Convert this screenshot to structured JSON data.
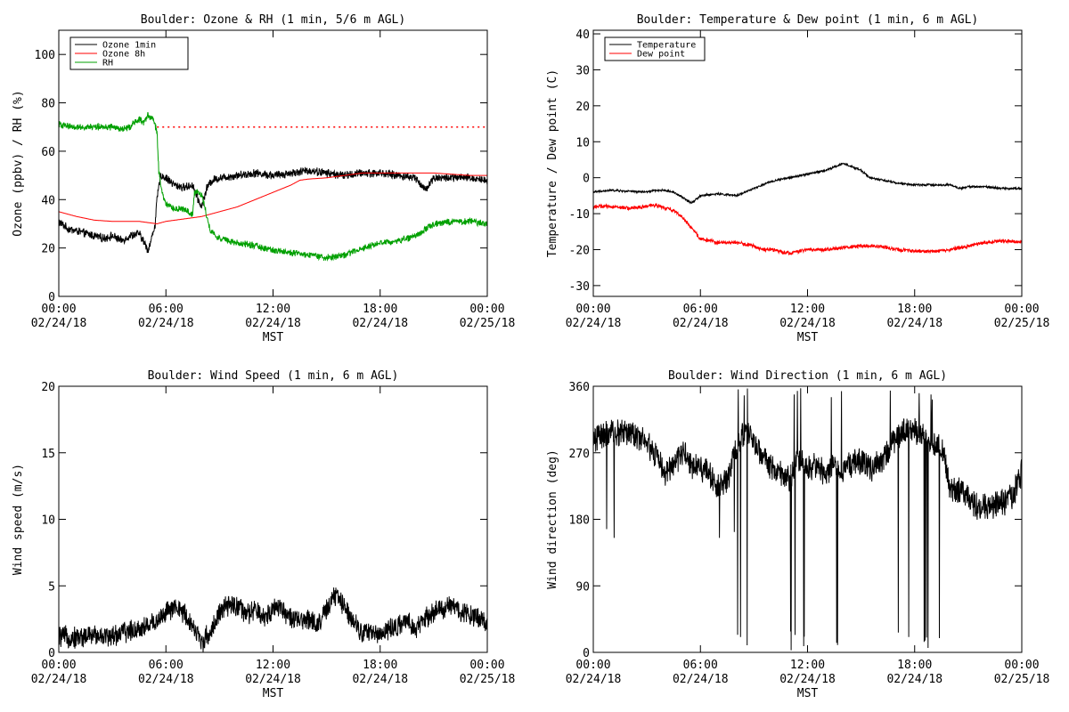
{
  "chart_data": [
    {
      "id": "ozone-rh",
      "type": "line",
      "title": "Boulder: Ozone & RH (1 min, 5/6 m AGL)",
      "xlabel": "MST",
      "ylabel": "Ozone (ppbv) / RH (%)",
      "xlim": [
        0,
        24
      ],
      "ylim": [
        0,
        110
      ],
      "x_ticks": [
        {
          "v": 0,
          "line1": "00:00",
          "line2": "02/24/18"
        },
        {
          "v": 6,
          "line1": "06:00",
          "line2": "02/24/18"
        },
        {
          "v": 12,
          "line1": "12:00",
          "line2": "02/24/18"
        },
        {
          "v": 18,
          "line1": "18:00",
          "line2": "02/24/18"
        },
        {
          "v": 24,
          "line1": "00:00",
          "line2": "02/25/18"
        }
      ],
      "y_ticks": [
        0,
        20,
        40,
        60,
        80,
        100
      ],
      "legend": "top-left",
      "reference_lines": [
        {
          "y": 70,
          "color": "#ff0000",
          "style": "dotted",
          "x_from": 5.5,
          "x_to": 24
        }
      ],
      "series": [
        {
          "name": "Ozone 1min",
          "color": "#000000",
          "noise": 1.5,
          "x": [
            0,
            0.5,
            1,
            1.5,
            2,
            2.5,
            3,
            3.5,
            4,
            4.5,
            4.8,
            5.0,
            5.2,
            5.4,
            5.5,
            5.7,
            6,
            6.5,
            7,
            7.5,
            7.8,
            8.0,
            8.3,
            8.6,
            9,
            10,
            11,
            12,
            13,
            14,
            15,
            16,
            17,
            18,
            19,
            20,
            20.5,
            21,
            22,
            23,
            24
          ],
          "y": [
            31,
            28,
            27,
            26,
            25,
            24,
            25,
            23,
            25,
            26,
            22,
            19,
            24,
            30,
            40,
            50,
            49,
            46,
            45,
            46,
            40,
            37,
            45,
            48,
            49,
            50,
            51,
            50,
            51,
            52,
            51,
            50,
            51,
            51,
            50,
            49,
            44,
            49,
            49,
            49,
            48
          ]
        },
        {
          "name": "Ozone 8h",
          "color": "#ff0000",
          "noise": 0,
          "x": [
            0,
            1,
            2,
            3,
            4,
            4.5,
            5,
            5.5,
            6,
            7,
            8,
            9,
            10,
            11,
            12,
            13,
            13.5,
            14,
            15,
            16,
            17,
            18,
            19,
            20,
            21,
            22,
            23,
            24
          ],
          "y": [
            35,
            33,
            31.5,
            31,
            31,
            31,
            30.5,
            30,
            31,
            32,
            33,
            35,
            37,
            40,
            43,
            46,
            48,
            48.5,
            49,
            50,
            51,
            51,
            51,
            51,
            51,
            50.5,
            50,
            50
          ]
        },
        {
          "name": "RH",
          "color": "#00a000",
          "noise": 1.2,
          "x": [
            0,
            1,
            2,
            3,
            3.5,
            4,
            4.2,
            4.5,
            4.8,
            5,
            5.3,
            5.5,
            5.6,
            5.8,
            6,
            6.5,
            7,
            7.5,
            7.6,
            7.8,
            8.0,
            8.3,
            8.5,
            9,
            10,
            11,
            12,
            13,
            14,
            15,
            16,
            17,
            18,
            19,
            19.5,
            20,
            21,
            22,
            23,
            24
          ],
          "y": [
            71,
            70,
            70,
            70,
            69,
            70,
            72,
            73,
            72,
            75,
            73,
            68,
            52,
            42,
            38,
            36,
            36,
            34,
            43,
            43,
            42,
            33,
            27,
            24,
            22,
            21,
            19,
            18,
            17,
            16,
            17,
            20,
            22,
            23,
            24,
            25,
            30,
            31,
            31,
            30
          ]
        }
      ]
    },
    {
      "id": "temp-dew",
      "type": "line",
      "title": "Boulder: Temperature & Dew point (1 min, 6 m AGL)",
      "xlabel": "MST",
      "ylabel": "Temperature / Dew point (C)",
      "xlim": [
        0,
        24
      ],
      "ylim": [
        -33,
        41
      ],
      "x_ticks": [
        {
          "v": 0,
          "line1": "00:00",
          "line2": "02/24/18"
        },
        {
          "v": 6,
          "line1": "06:00",
          "line2": "02/24/18"
        },
        {
          "v": 12,
          "line1": "12:00",
          "line2": "02/24/18"
        },
        {
          "v": 18,
          "line1": "18:00",
          "line2": "02/24/18"
        },
        {
          "v": 24,
          "line1": "00:00",
          "line2": "02/25/18"
        }
      ],
      "y_ticks": [
        -30,
        -20,
        -10,
        0,
        10,
        20,
        30,
        40
      ],
      "legend": "top-left",
      "reference_lines": [],
      "series": [
        {
          "name": "Temperature",
          "color": "#000000",
          "noise": 0.25,
          "x": [
            0,
            1,
            2,
            3,
            3.5,
            4,
            4.5,
            5,
            5.5,
            6,
            7,
            8,
            9,
            10,
            11,
            12,
            13,
            13.5,
            14,
            14.5,
            15,
            15.5,
            16,
            17,
            18,
            19,
            20,
            20.5,
            21,
            22,
            23,
            24
          ],
          "y": [
            -4,
            -3.5,
            -3.8,
            -4,
            -3.5,
            -3.5,
            -4,
            -5.5,
            -7,
            -5,
            -4.5,
            -5,
            -3,
            -1,
            0,
            1,
            2,
            3,
            4,
            3,
            2,
            0,
            -0.5,
            -1.5,
            -2,
            -2,
            -2,
            -3,
            -2.5,
            -2.5,
            -3,
            -3
          ]
        },
        {
          "name": "Dew point",
          "color": "#ff0000",
          "noise": 0.45,
          "x": [
            0,
            1,
            2,
            3,
            3.5,
            4,
            4.5,
            5,
            5.5,
            6,
            6.5,
            7,
            8,
            9,
            9.5,
            10,
            11,
            12,
            13,
            14,
            15,
            16,
            17,
            18,
            19,
            20,
            21,
            22,
            23,
            24
          ],
          "y": [
            -8,
            -8,
            -8.5,
            -8,
            -7.5,
            -8.5,
            -9,
            -11,
            -14,
            -17,
            -17.5,
            -18,
            -18,
            -19,
            -20,
            -20,
            -21,
            -20,
            -20,
            -19.5,
            -19,
            -19,
            -20,
            -20.5,
            -20.5,
            -20,
            -19,
            -18,
            -17.5,
            -18
          ]
        }
      ]
    },
    {
      "id": "wind-speed",
      "type": "line",
      "title": "Boulder: Wind Speed (1 min, 6 m AGL)",
      "xlabel": "MST",
      "ylabel": "Wind speed (m/s)",
      "xlim": [
        0,
        24
      ],
      "ylim": [
        0,
        20
      ],
      "x_ticks": [
        {
          "v": 0,
          "line1": "00:00",
          "line2": "02/24/18"
        },
        {
          "v": 6,
          "line1": "06:00",
          "line2": "02/24/18"
        },
        {
          "v": 12,
          "line1": "12:00",
          "line2": "02/24/18"
        },
        {
          "v": 18,
          "line1": "18:00",
          "line2": "02/24/18"
        },
        {
          "v": 24,
          "line1": "00:00",
          "line2": "02/25/18"
        }
      ],
      "y_ticks": [
        0,
        5,
        10,
        15,
        20
      ],
      "legend": "none",
      "reference_lines": [],
      "series": [
        {
          "name": "",
          "color": "#000000",
          "noise": 0.7,
          "clip_min": 0,
          "x": [
            0,
            1,
            2,
            3,
            3.5,
            4,
            4.5,
            5,
            5.5,
            6,
            6.5,
            7,
            7.5,
            8,
            8.5,
            9,
            9.5,
            10,
            10.5,
            11,
            11.5,
            12,
            12.5,
            13,
            13.5,
            14,
            14.5,
            15,
            15.5,
            16,
            16.5,
            17,
            17.5,
            18,
            18.5,
            19,
            19.5,
            20,
            20.5,
            21,
            21.5,
            22,
            22.5,
            23,
            23.5,
            24
          ],
          "y": [
            1.2,
            1.1,
            1.3,
            1.2,
            1.5,
            1.6,
            1.8,
            2,
            2.4,
            3,
            3.3,
            3,
            2,
            0.8,
            1.5,
            3,
            3.5,
            3.5,
            2.8,
            3.2,
            2.5,
            3.4,
            3.4,
            2.5,
            2.3,
            2.6,
            2,
            3.2,
            4.3,
            3.5,
            2.4,
            1.5,
            1.5,
            1.4,
            1.7,
            2,
            2.2,
            1.8,
            2.5,
            3,
            3.3,
            3.5,
            3,
            3,
            2.6,
            2.2
          ]
        }
      ]
    },
    {
      "id": "wind-direction",
      "type": "line",
      "title": "Boulder: Wind Direction (1 min, 6 m AGL)",
      "xlabel": "MST",
      "ylabel": "Wind direction (deg)",
      "xlim": [
        0,
        24
      ],
      "ylim": [
        0,
        360
      ],
      "x_ticks": [
        {
          "v": 0,
          "line1": "00:00",
          "line2": "02/24/18"
        },
        {
          "v": 6,
          "line1": "06:00",
          "line2": "02/24/18"
        },
        {
          "v": 12,
          "line1": "12:00",
          "line2": "02/24/18"
        },
        {
          "v": 18,
          "line1": "18:00",
          "line2": "02/24/18"
        },
        {
          "v": 24,
          "line1": "00:00",
          "line2": "02/25/18"
        }
      ],
      "y_ticks": [
        0,
        90,
        180,
        270,
        360
      ],
      "legend": "none",
      "reference_lines": [],
      "wrap_spans": [
        [
          7.6,
          8.7
        ],
        [
          10.9,
          12.1
        ],
        [
          13.2,
          14.2
        ],
        [
          16.2,
          19.5
        ]
      ],
      "series": [
        {
          "name": "",
          "color": "#000000",
          "noise": 16,
          "clip_min": 0,
          "clip_max": 360,
          "x": [
            0,
            1,
            2,
            3,
            3.5,
            4,
            4.5,
            5,
            5.5,
            6,
            6.5,
            7,
            7.5,
            8,
            8.5,
            9,
            9.5,
            10,
            10.5,
            11,
            11.5,
            12,
            12.5,
            13,
            13.5,
            14,
            14.5,
            15,
            15.5,
            16,
            16.5,
            17,
            17.5,
            18,
            18.5,
            19,
            19.5,
            20,
            20.5,
            21,
            21.5,
            22,
            22.5,
            23,
            23.5,
            24
          ],
          "y": [
            290,
            295,
            300,
            285,
            265,
            240,
            255,
            270,
            255,
            250,
            240,
            225,
            230,
            280,
            300,
            285,
            265,
            250,
            240,
            235,
            260,
            250,
            250,
            240,
            255,
            245,
            255,
            260,
            250,
            255,
            270,
            290,
            300,
            300,
            295,
            280,
            280,
            220,
            220,
            210,
            195,
            195,
            200,
            205,
            210,
            245
          ]
        }
      ]
    }
  ]
}
